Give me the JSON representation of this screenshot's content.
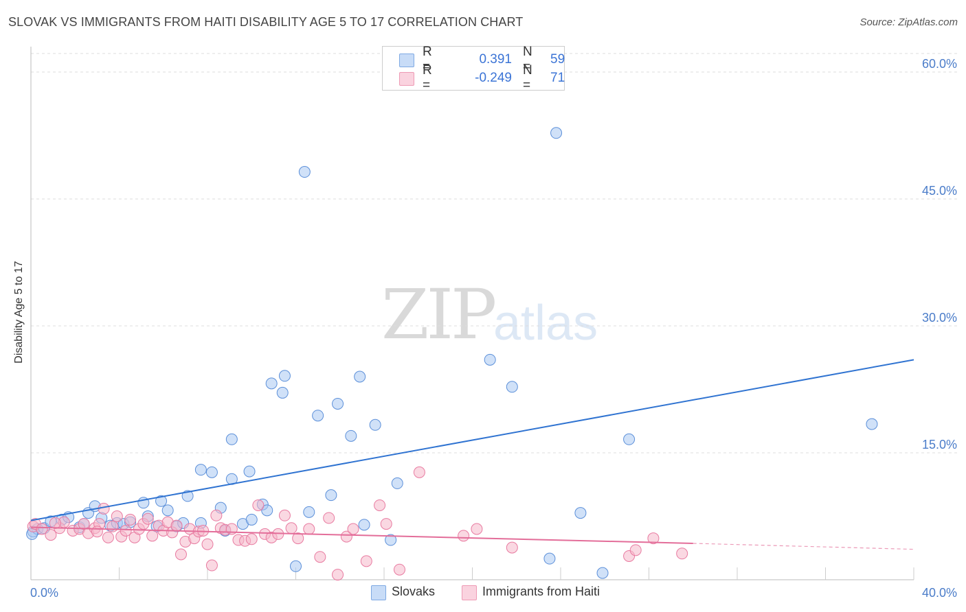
{
  "header": {
    "title": "SLOVAK VS IMMIGRANTS FROM HAITI DISABILITY AGE 5 TO 17 CORRELATION CHART",
    "source": "Source: ZipAtlas.com"
  },
  "watermark": {
    "zip": "ZIP",
    "atlas": "atlas"
  },
  "legend": {
    "rows": [
      {
        "r_label": "R =",
        "r_value": "0.391",
        "n_label": "N =",
        "n_value": "59",
        "color": "#a9c8f2"
      },
      {
        "r_label": "R =",
        "r_value": "-0.249",
        "n_label": "N =",
        "n_value": "71",
        "color": "#f6b8cb"
      }
    ]
  },
  "bottom_legend": {
    "items": [
      {
        "label": "Slovaks",
        "color": "#a9c8f2"
      },
      {
        "label": "Immigrants from Haiti",
        "color": "#f6b8cb"
      }
    ]
  },
  "chart_data": {
    "type": "scatter",
    "title": "SLOVAK VS IMMIGRANTS FROM HAITI DISABILITY AGE 5 TO 17 CORRELATION CHART",
    "xlabel": "",
    "ylabel": "Disability Age 5 to 17",
    "xlim": [
      0,
      40
    ],
    "ylim": [
      0,
      63
    ],
    "x_tick_labels": [
      "0.0%",
      "40.0%"
    ],
    "y_ticks": [
      15,
      30,
      45,
      60
    ],
    "y_tick_labels": [
      "15.0%",
      "30.0%",
      "45.0%",
      "60.0%"
    ],
    "grid": true,
    "legend_position": "top-center",
    "series": [
      {
        "name": "Slovaks",
        "color": "#5b8fd9",
        "fill": "#a9c8f2",
        "trend": {
          "x": [
            0,
            40
          ],
          "y": [
            7.0,
            26.0
          ],
          "color": "#2f73d1"
        },
        "points": [
          [
            0.1,
            5.7
          ],
          [
            0.3,
            6.0
          ],
          [
            0.6,
            6.1
          ],
          [
            0.9,
            6.9
          ],
          [
            1.4,
            7.1
          ],
          [
            1.7,
            7.4
          ],
          [
            2.2,
            6.2
          ],
          [
            2.4,
            6.6
          ],
          [
            2.6,
            7.9
          ],
          [
            2.9,
            8.7
          ],
          [
            3.2,
            7.3
          ],
          [
            3.6,
            6.4
          ],
          [
            3.9,
            6.7
          ],
          [
            4.2,
            6.6
          ],
          [
            4.5,
            6.8
          ],
          [
            5.1,
            9.1
          ],
          [
            5.3,
            7.5
          ],
          [
            5.7,
            6.3
          ],
          [
            5.9,
            9.3
          ],
          [
            6.2,
            8.2
          ],
          [
            6.6,
            6.3
          ],
          [
            6.9,
            6.7
          ],
          [
            7.1,
            9.9
          ],
          [
            7.7,
            13.0
          ],
          [
            7.7,
            6.7
          ],
          [
            8.2,
            12.7
          ],
          [
            8.6,
            8.5
          ],
          [
            8.8,
            5.8
          ],
          [
            9.1,
            11.9
          ],
          [
            9.1,
            16.6
          ],
          [
            9.6,
            6.6
          ],
          [
            9.9,
            12.8
          ],
          [
            10.0,
            7.1
          ],
          [
            10.5,
            8.9
          ],
          [
            10.7,
            8.2
          ],
          [
            10.9,
            23.2
          ],
          [
            11.4,
            22.1
          ],
          [
            11.5,
            24.1
          ],
          [
            12.0,
            1.6
          ],
          [
            12.4,
            48.2
          ],
          [
            12.6,
            8.0
          ],
          [
            13.0,
            19.4
          ],
          [
            13.9,
            20.8
          ],
          [
            13.6,
            10.0
          ],
          [
            14.5,
            17.0
          ],
          [
            14.9,
            24.0
          ],
          [
            15.1,
            6.5
          ],
          [
            15.6,
            18.3
          ],
          [
            16.3,
            4.7
          ],
          [
            16.6,
            11.4
          ],
          [
            20.8,
            26.0
          ],
          [
            21.8,
            22.8
          ],
          [
            23.5,
            2.5
          ],
          [
            23.8,
            52.8
          ],
          [
            24.9,
            7.9
          ],
          [
            25.9,
            0.8
          ],
          [
            27.1,
            16.6
          ],
          [
            38.1,
            18.4
          ],
          [
            0.05,
            5.4
          ]
        ]
      },
      {
        "name": "Immigrants from Haiti",
        "color": "#e87aa0",
        "fill": "#f6b8cb",
        "trend": {
          "x": [
            0,
            30
          ],
          "y": [
            6.2,
            4.3
          ],
          "dashed_to": [
            40,
            3.6
          ],
          "color": "#e36d99"
        },
        "points": [
          [
            0.1,
            6.3
          ],
          [
            0.2,
            6.6
          ],
          [
            0.5,
            6.0
          ],
          [
            0.9,
            5.3
          ],
          [
            1.3,
            6.1
          ],
          [
            1.5,
            6.8
          ],
          [
            1.9,
            5.8
          ],
          [
            2.2,
            6.0
          ],
          [
            2.4,
            6.6
          ],
          [
            2.6,
            5.5
          ],
          [
            2.9,
            6.1
          ],
          [
            3.1,
            6.6
          ],
          [
            3.3,
            8.4
          ],
          [
            3.5,
            5.0
          ],
          [
            3.7,
            6.3
          ],
          [
            3.9,
            7.5
          ],
          [
            4.1,
            5.1
          ],
          [
            4.3,
            5.8
          ],
          [
            4.5,
            7.1
          ],
          [
            4.7,
            5.0
          ],
          [
            4.9,
            6.0
          ],
          [
            5.1,
            6.6
          ],
          [
            5.3,
            7.2
          ],
          [
            5.5,
            5.2
          ],
          [
            5.8,
            6.4
          ],
          [
            6.0,
            5.8
          ],
          [
            6.2,
            6.8
          ],
          [
            6.4,
            5.6
          ],
          [
            6.6,
            6.4
          ],
          [
            6.8,
            3.0
          ],
          [
            7.0,
            4.5
          ],
          [
            7.2,
            6.0
          ],
          [
            7.4,
            4.9
          ],
          [
            7.6,
            5.7
          ],
          [
            7.8,
            5.8
          ],
          [
            8.0,
            4.2
          ],
          [
            8.2,
            1.7
          ],
          [
            8.4,
            7.6
          ],
          [
            8.6,
            6.1
          ],
          [
            8.8,
            5.9
          ],
          [
            9.1,
            6.0
          ],
          [
            9.4,
            4.7
          ],
          [
            9.7,
            4.6
          ],
          [
            10.0,
            4.8
          ],
          [
            10.3,
            8.8
          ],
          [
            10.6,
            5.4
          ],
          [
            10.9,
            5.0
          ],
          [
            11.2,
            5.4
          ],
          [
            11.5,
            7.6
          ],
          [
            11.8,
            6.1
          ],
          [
            12.1,
            4.9
          ],
          [
            12.6,
            6.0
          ],
          [
            13.1,
            2.7
          ],
          [
            13.5,
            7.3
          ],
          [
            13.9,
            0.6
          ],
          [
            14.3,
            5.1
          ],
          [
            14.6,
            6.0
          ],
          [
            15.2,
            2.2
          ],
          [
            15.8,
            8.8
          ],
          [
            16.1,
            6.6
          ],
          [
            16.7,
            1.2
          ],
          [
            17.6,
            12.7
          ],
          [
            19.6,
            5.2
          ],
          [
            20.2,
            6.0
          ],
          [
            21.8,
            3.8
          ],
          [
            27.1,
            2.8
          ],
          [
            27.4,
            3.5
          ],
          [
            28.2,
            4.9
          ],
          [
            29.5,
            3.1
          ],
          [
            1.1,
            6.7
          ],
          [
            3.0,
            5.7
          ]
        ]
      }
    ]
  }
}
